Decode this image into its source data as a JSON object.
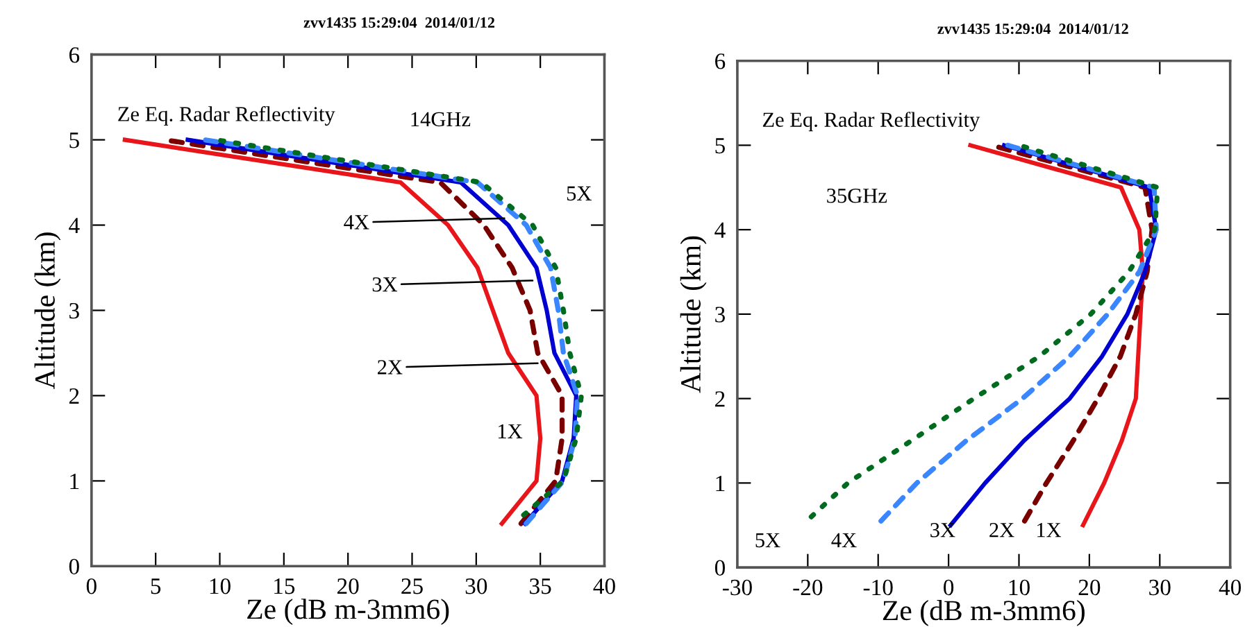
{
  "chart_data": [
    {
      "type": "line",
      "title": "zvv1435 15:29:04  2014/01/12",
      "subtitle": "Ze Eq. Radar Reflectivity",
      "xlabel": "Ze (dB m-3mm6)",
      "ylabel": "Altitude (km)",
      "xlim": [
        0,
        40
      ],
      "xticks": [
        0,
        5,
        10,
        15,
        20,
        25,
        30,
        35,
        40
      ],
      "ylim": [
        0,
        6
      ],
      "yticks": [
        0,
        1,
        2,
        3,
        4,
        5,
        6
      ],
      "grid": false,
      "legend": false,
      "annotations": [
        "14GHz",
        "5X",
        {
          "text": "4X",
          "x": 32.2,
          "y": 4.08
        },
        {
          "text": "3X",
          "x": 34.4,
          "y": 3.35
        },
        {
          "text": "2X",
          "x": 34.8,
          "y": 2.38
        },
        "1X"
      ],
      "series": [
        {
          "color": "#e8151a",
          "line_style": "solid",
          "x": [
            32.0,
            34.7,
            35.0,
            34.7,
            32.5,
            30.1,
            27.8,
            24.1,
            2.6
          ],
          "values": [
            0.5,
            1,
            1.5,
            2,
            2.5,
            3.5,
            4,
            4.5,
            5
          ]
        },
        {
          "color": "#7a0000",
          "line_style": "dashed",
          "x": [
            33.5,
            36.2,
            36.7,
            36.7,
            34.8,
            34.2,
            32.8,
            30.6,
            27.2,
            5.7
          ],
          "values": [
            0.5,
            1,
            1.5,
            2,
            2.5,
            3,
            3.5,
            4,
            4.5,
            5
          ]
        },
        {
          "color": "#0000d0",
          "line_style": "solid",
          "x": [
            33.8,
            36.7,
            37.6,
            37.8,
            36.1,
            35.5,
            34.7,
            32.5,
            28.8,
            7.5
          ],
          "values": [
            0.5,
            1,
            1.5,
            2,
            2.5,
            3,
            3.5,
            4,
            4.5,
            5
          ]
        },
        {
          "color": "#3a86ff",
          "line_style": "dashed",
          "x": [
            33.9,
            36.8,
            37.7,
            37.9,
            36.8,
            36.4,
            35.8,
            33.9,
            30.1,
            8.8
          ],
          "values": [
            0.5,
            1,
            1.5,
            2,
            2.5,
            3,
            3.5,
            4,
            4.5,
            5
          ]
        },
        {
          "color": "#006a1e",
          "line_style": "dotted",
          "x": [
            33.7,
            36.8,
            37.8,
            38.2,
            37.3,
            36.8,
            36.2,
            34.4,
            30.4,
            9.7
          ],
          "values": [
            0.6,
            1,
            1.5,
            2,
            2.5,
            3,
            3.5,
            4,
            4.5,
            5
          ]
        }
      ]
    },
    {
      "type": "line",
      "title": "zvv1435 15:29:04  2014/01/12",
      "subtitle": "Ze Eq. Radar Reflectivity",
      "xlabel": "Ze (dB m-3mm6)",
      "ylabel": "Altitude (km)",
      "xlim": [
        -30,
        40
      ],
      "xticks": [
        -30,
        -20,
        -10,
        0,
        10,
        20,
        30,
        40
      ],
      "ylim": [
        0,
        6
      ],
      "yticks": [
        0,
        1,
        2,
        3,
        4,
        5,
        6
      ],
      "grid": false,
      "legend": false,
      "annotations": [
        "35GHz",
        "5X",
        "4X",
        "3X",
        "2X",
        "1X"
      ],
      "series": [
        {
          "color": "#e8151a",
          "line_style": "solid",
          "x": [
            19.1,
            22.1,
            24.6,
            26.6,
            27.6,
            27.1,
            24.5,
            3.1
          ],
          "values": [
            0.5,
            1,
            1.5,
            2,
            3.5,
            4,
            4.5,
            5
          ]
        },
        {
          "color": "#7a0000",
          "line_style": "dashed",
          "x": [
            10.8,
            13.9,
            17.7,
            21.2,
            24.4,
            26.6,
            28.2,
            28.9,
            27.9,
            6.1
          ],
          "values": [
            0.55,
            1,
            1.5,
            2,
            2.5,
            3,
            3.5,
            4,
            4.5,
            5
          ]
        },
        {
          "color": "#0000d0",
          "line_style": "solid",
          "x": [
            0.3,
            5.2,
            10.7,
            17.2,
            21.8,
            25.4,
            27.9,
            29.5,
            28.5,
            7.9
          ],
          "values": [
            0.5,
            1,
            1.5,
            2,
            2.5,
            3,
            3.5,
            4,
            4.5,
            5
          ]
        },
        {
          "color": "#3a86ff",
          "line_style": "dashed",
          "x": [
            -9.6,
            -4.5,
            2.5,
            10.5,
            17.2,
            22.6,
            27.1,
            29.5,
            29.2,
            8.4
          ],
          "values": [
            0.55,
            1,
            1.5,
            2,
            2.5,
            3,
            3.5,
            4,
            4.5,
            5
          ]
        },
        {
          "color": "#006a1e",
          "line_style": "dotted",
          "x": [
            -19.5,
            -14.3,
            -5.3,
            3.6,
            12.9,
            20.2,
            25.6,
            29.3,
            29.7,
            10.0
          ],
          "values": [
            0.6,
            1,
            1.5,
            2,
            2.5,
            3,
            3.5,
            4,
            4.5,
            5
          ]
        }
      ]
    }
  ]
}
